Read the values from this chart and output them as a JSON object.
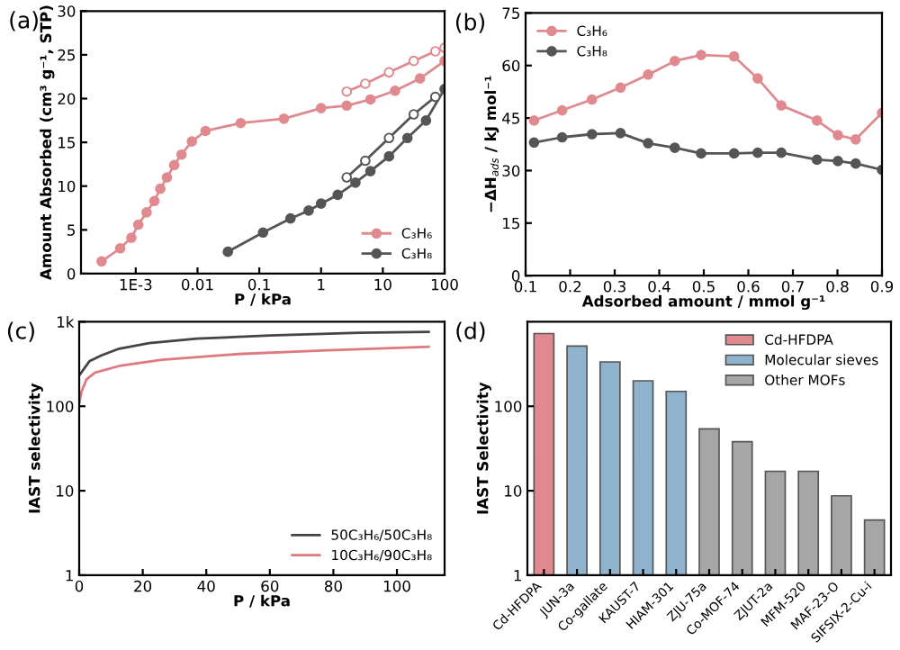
{
  "chart_data": [
    {
      "type": "line",
      "annotations": [
        "(a)"
      ],
      "xlabel": "P / kPa",
      "ylabel": "Amount Absorbed (cm³ g⁻¹, STP)",
      "log": "x",
      "xlim": [
        0.00013,
        100
      ],
      "xticks": [
        {
          "value": 0.001,
          "label": "1E-3"
        },
        0.01,
        0.1,
        1,
        10,
        100
      ],
      "ylim": [
        0,
        30
      ],
      "yticks": [
        0,
        5,
        10,
        15,
        20,
        25,
        30
      ],
      "marker": "circle",
      "legend": "bottom right",
      "grid": false,
      "series": [
        {
          "name": "C₃H₆",
          "color": "#e08a8f",
          "x": [
            0.00028,
            0.00056,
            0.00085,
            0.0011,
            0.0015,
            0.002,
            0.0025,
            0.0032,
            0.0042,
            0.0055,
            0.0081,
            0.0135,
            0.05,
            0.25,
            1,
            2.6,
            6.3,
            15.8,
            40,
            100
          ],
          "values": [
            1.4,
            2.9,
            4.1,
            5.6,
            7.0,
            8.3,
            9.7,
            11.0,
            12.4,
            13.6,
            15.1,
            16.3,
            17.2,
            17.7,
            18.9,
            19.2,
            19.9,
            20.9,
            22.3,
            24.3
          ]
        },
        {
          "color": "#e08a8f",
          "x": [
            2.6,
            5.2,
            12.6,
            31.6,
            70.8,
            100
          ],
          "values": [
            20.8,
            21.7,
            23.0,
            24.3,
            25.4,
            25.8
          ]
        },
        {
          "name": "C₃H₈",
          "color": "#555555",
          "x": [
            0.031,
            0.115,
            0.32,
            0.63,
            1,
            1.86,
            3.6,
            6.3,
            12.6,
            25,
            50,
            100
          ],
          "values": [
            2.5,
            4.7,
            6.3,
            7.2,
            8.0,
            9.0,
            10.4,
            11.7,
            13.4,
            15.5,
            17.5,
            21.1
          ]
        },
        {
          "color": "#555555",
          "x": [
            2.6,
            5.2,
            12.6,
            31.6,
            70.8
          ],
          "values": [
            11.0,
            12.9,
            15.5,
            18.2,
            20.2
          ]
        }
      ]
    },
    {
      "type": "line",
      "annotations": [
        "(b)"
      ],
      "xlabel": "Adsorbed amount / mmol g⁻¹",
      "ylabel": "−ΔH$_{ads}$ / kJ mol⁻¹",
      "xlim": [
        0.1,
        0.9
      ],
      "xticks": [
        0.1,
        0.2,
        0.3,
        0.4,
        0.5,
        0.6,
        0.7,
        0.8,
        0.9
      ],
      "ylim": [
        0,
        75
      ],
      "yticks": [
        0,
        15,
        30,
        45,
        60,
        75
      ],
      "marker": "circle",
      "legend": "top left",
      "grid": false,
      "series": [
        {
          "name": "C₃H₆",
          "color": "#e08a8f",
          "x": [
            0.119,
            0.182,
            0.249,
            0.313,
            0.375,
            0.435,
            0.494,
            0.568,
            0.621,
            0.674,
            0.754,
            0.801,
            0.841,
            0.9
          ],
          "values": [
            44.3,
            47.2,
            50.3,
            53.7,
            57.4,
            61.3,
            63.0,
            62.6,
            56.3,
            48.6,
            44.3,
            40.1,
            38.9,
            46.5
          ]
        },
        {
          "name": "C₃H₈",
          "color": "#555555",
          "x": [
            0.119,
            0.182,
            0.249,
            0.313,
            0.375,
            0.435,
            0.494,
            0.568,
            0.621,
            0.674,
            0.754,
            0.801,
            0.841,
            0.9
          ],
          "values": [
            38.0,
            39.5,
            40.4,
            40.7,
            37.8,
            36.5,
            34.9,
            34.9,
            35.1,
            35.1,
            33.1,
            32.7,
            32.0,
            30.2
          ]
        }
      ]
    },
    {
      "type": "line",
      "annotations": [
        "(c)"
      ],
      "xlabel": "P / kPa",
      "ylabel": "IAST selectivity",
      "log": "y",
      "xlim": [
        0,
        115
      ],
      "xticks": [
        0,
        20,
        40,
        60,
        80,
        100
      ],
      "ylim": [
        1,
        1000
      ],
      "yticks": [
        1,
        10,
        100,
        {
          "value": 1000,
          "label": "1k"
        }
      ],
      "legend": "bottom right",
      "grid": false,
      "series": [
        {
          "name": "50C₃H₆/50C₃H₈",
          "color": "#444444",
          "x": [
            0.3,
            3.2,
            7,
            12.6,
            22,
            37,
            60,
            88,
            110
          ],
          "values": [
            240,
            340,
            400,
            480,
            560,
            630,
            690,
            740,
            760
          ]
        },
        {
          "name": "10C₃H₆/90C₃H₈",
          "color": "#e0787f",
          "x": [
            0.1,
            0.75,
            2.3,
            5,
            12.6,
            26,
            50,
            78,
            110
          ],
          "values": [
            112,
            150,
            208,
            250,
            300,
            355,
            415,
            460,
            505
          ]
        }
      ]
    },
    {
      "type": "bar",
      "annotations": [
        "(d)"
      ],
      "ylabel": "IAST Selectivity",
      "log": "y",
      "ylim": [
        1,
        1000
      ],
      "yticks": [
        1,
        10,
        100
      ],
      "legend": "top right",
      "grid": false,
      "categories": [
        "Cd-HFDPA",
        "JUN-3a",
        "Co-gallate",
        "KAUST-7",
        "HIAM-301",
        "ZJU-75a",
        "Co-MOF-74",
        "ZJUT-2a",
        "MFM-520",
        "MAF-23-O",
        "SIFSIX-2-Cu-i"
      ],
      "series": [
        {
          "name": "Cd-HFDPA",
          "color": "#e08a8f",
          "values": [
            725,
            null,
            null,
            null,
            null,
            null,
            null,
            null,
            null,
            null,
            null
          ]
        },
        {
          "name": "Molecular sieves",
          "color": "#8fb3cc",
          "values": [
            null,
            515,
            335,
            200,
            150,
            null,
            null,
            null,
            null,
            null,
            null
          ]
        },
        {
          "name": "Other MOFs",
          "color": "#a6a6a6",
          "values": [
            null,
            null,
            null,
            null,
            null,
            54,
            38,
            17,
            17,
            8.7,
            4.5
          ]
        }
      ]
    }
  ]
}
